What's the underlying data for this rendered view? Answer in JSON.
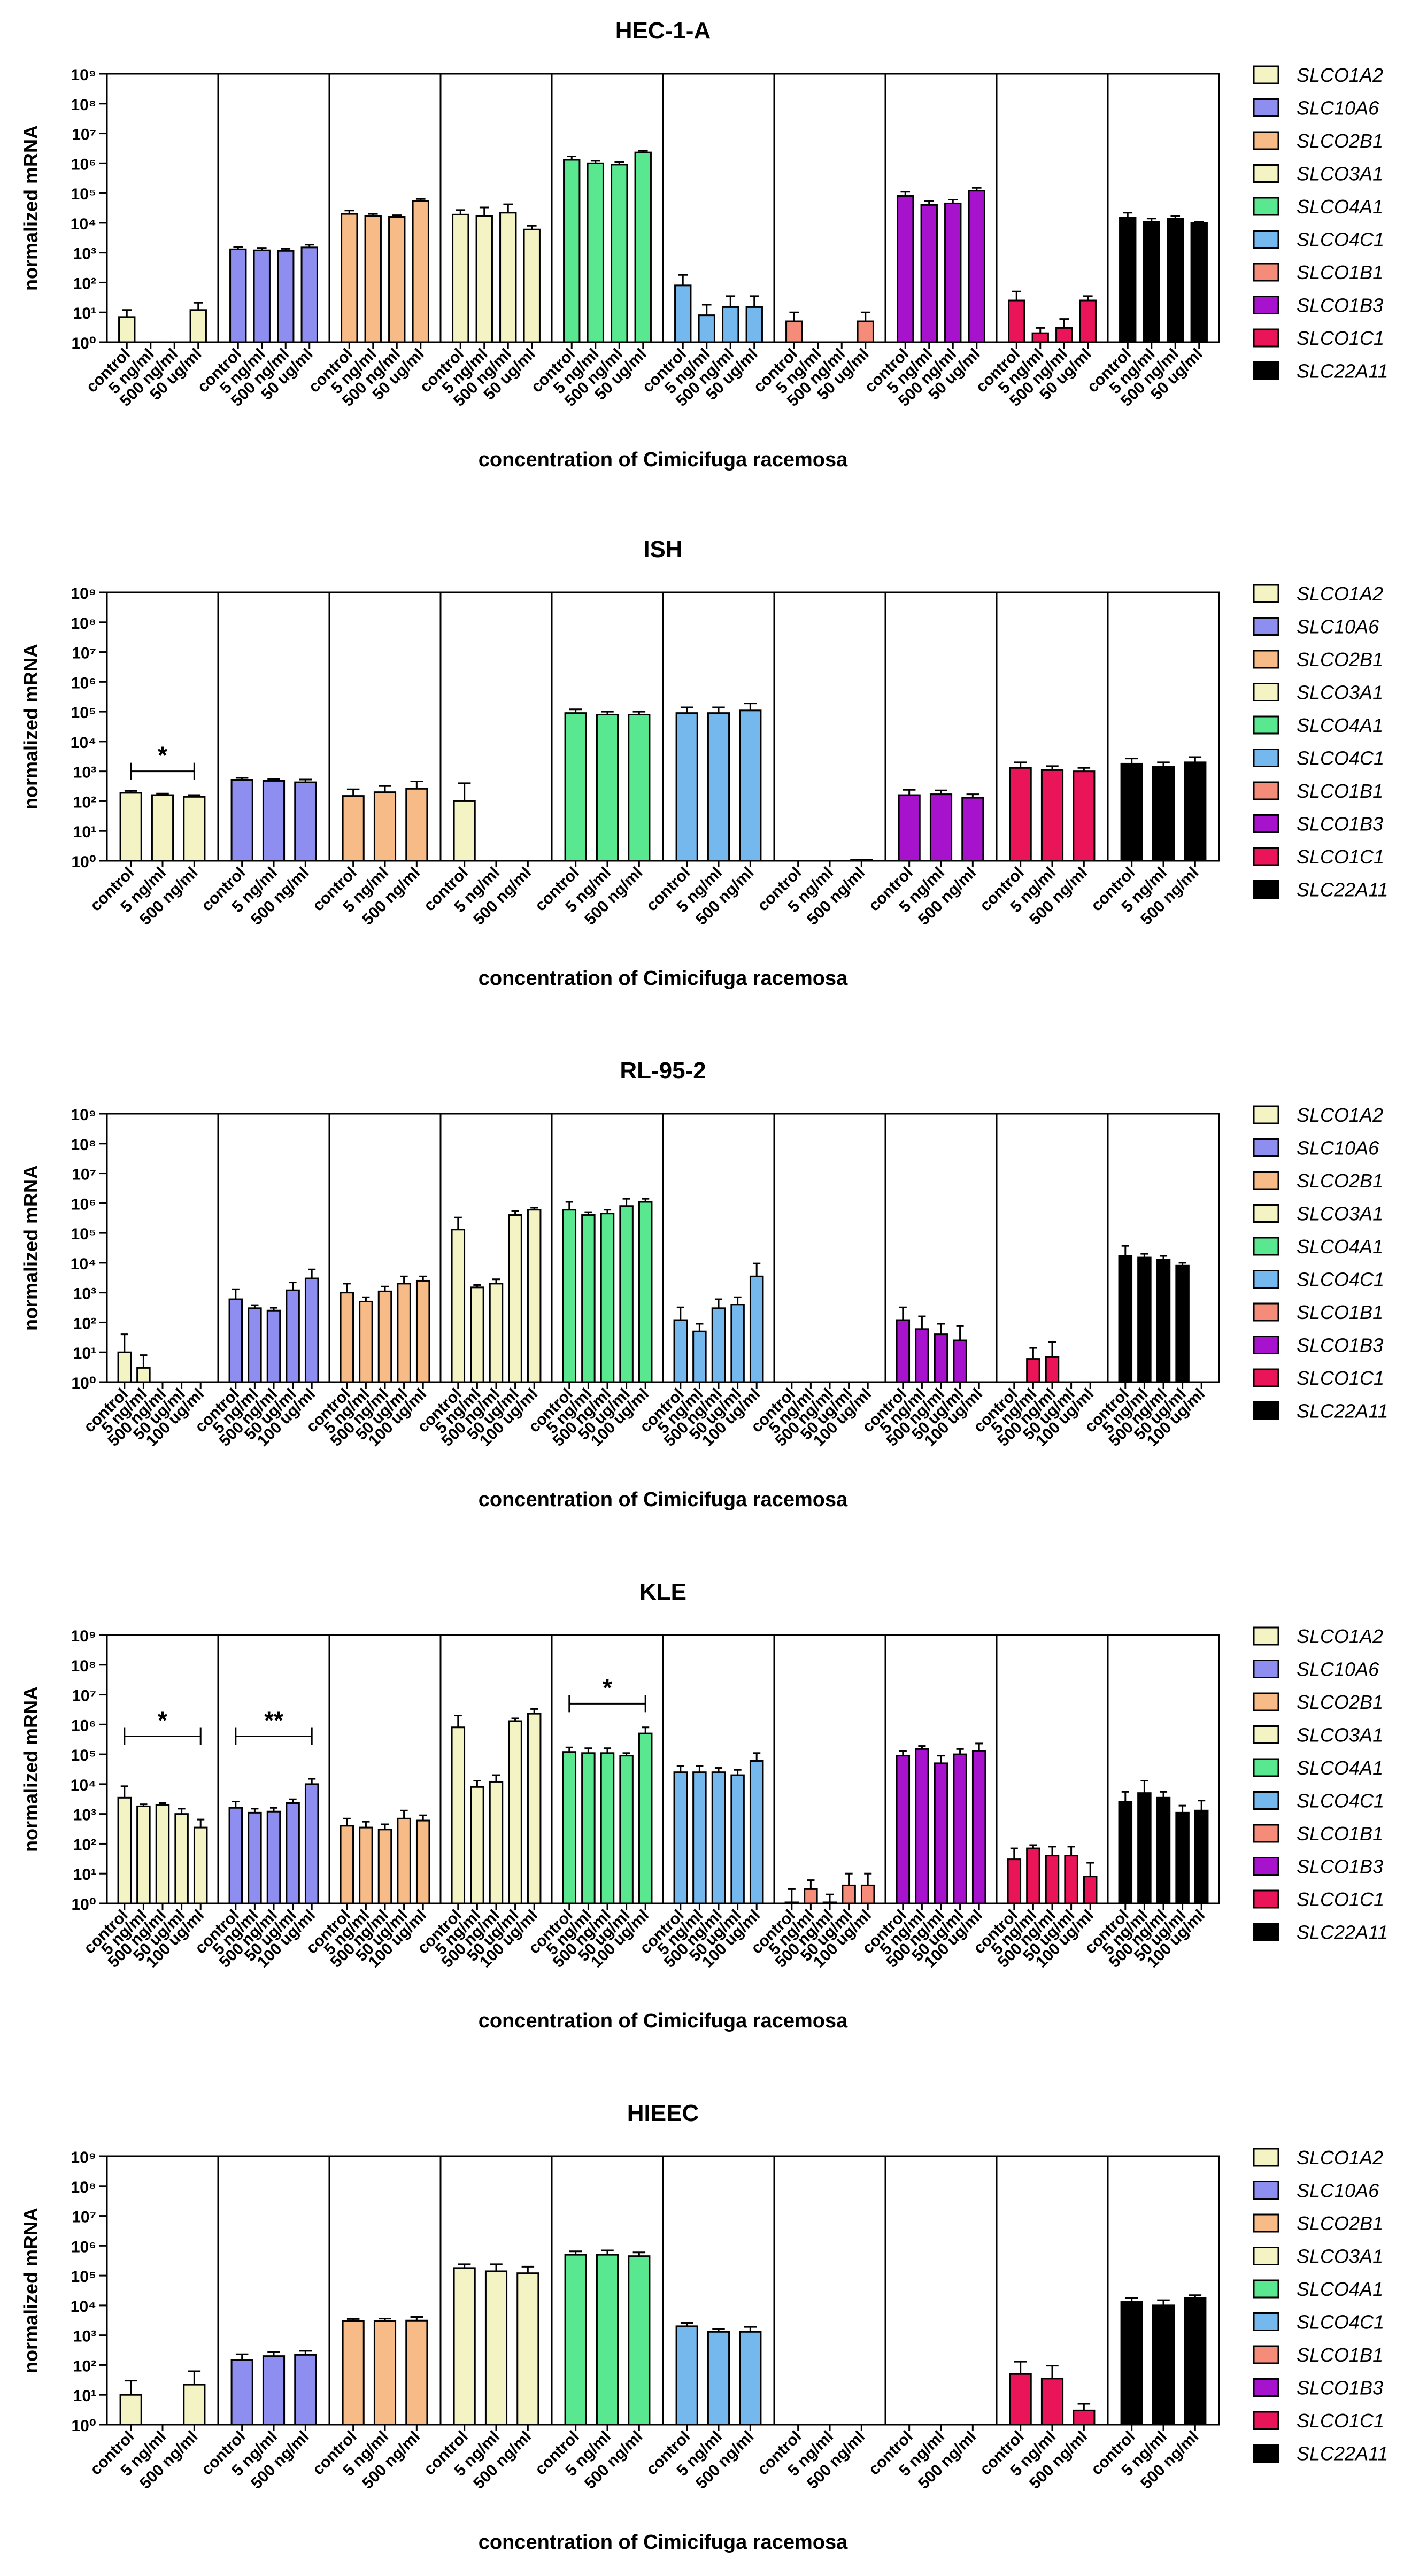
{
  "figure": {
    "panel_order": [
      "HEC-1-A",
      "ISH",
      "RL-95-2",
      "KLE",
      "HIEEC"
    ]
  },
  "chart_data": [
    {
      "type": "bar",
      "title": "HEC-1-A",
      "xlabel": "concentration of Cimicifuga racemosa",
      "ylabel": "normalized mRNA",
      "yscale": "log",
      "ylim": [
        1,
        1000000000
      ],
      "yticks": [
        "10⁰",
        "10¹",
        "10²",
        "10³",
        "10⁴",
        "10⁵",
        "10⁶",
        "10⁷",
        "10⁸",
        "10⁹"
      ],
      "categories": [
        "control",
        "5 ng/ml",
        "500 ng/ml",
        "50 ug/ml"
      ],
      "legend": [
        "SLCO1A2",
        "SLC10A6",
        "SLCO2B1",
        "SLCO3A1",
        "SLCO4A1",
        "SLCO4C1",
        "SLCO1B1",
        "SLCO1B3",
        "SLCO1C1",
        "SLC22A11"
      ],
      "series": [
        {
          "name": "SLCO1A2",
          "color": "#f3f3c3",
          "values": [
            7,
            null,
            null,
            12
          ],
          "err": [
            5,
            0,
            0,
            9
          ]
        },
        {
          "name": "SLC10A6",
          "color": "#8e8ef0",
          "values": [
            1300,
            1200,
            1150,
            1500
          ],
          "err": [
            250,
            250,
            200,
            350
          ]
        },
        {
          "name": "SLCO2B1",
          "color": "#f6bb86",
          "values": [
            20000,
            17000,
            16000,
            55000
          ],
          "err": [
            6000,
            3000,
            2000,
            8000
          ]
        },
        {
          "name": "SLCO3A1",
          "color": "#f3f3c3",
          "values": [
            19000,
            17000,
            22000,
            6000
          ],
          "err": [
            8000,
            16000,
            20000,
            2000
          ]
        },
        {
          "name": "SLCO4A1",
          "color": "#59e890",
          "values": [
            1300000,
            1000000,
            900000,
            2300000
          ],
          "err": [
            400000,
            200000,
            200000,
            300000
          ]
        },
        {
          "name": "SLCO4C1",
          "color": "#74b8ee",
          "values": [
            80,
            8,
            15,
            15
          ],
          "err": [
            100,
            10,
            20,
            20
          ]
        },
        {
          "name": "SLCO1B1",
          "color": "#f58b79",
          "values": [
            5,
            null,
            null,
            5
          ],
          "err": [
            5,
            0,
            0,
            5
          ]
        },
        {
          "name": "SLCO1B3",
          "color": "#a712cc",
          "values": [
            80000,
            40000,
            45000,
            120000
          ],
          "err": [
            30000,
            15000,
            15000,
            30000
          ]
        },
        {
          "name": "SLCO1C1",
          "color": "#ea1559",
          "values": [
            25,
            2,
            3,
            25
          ],
          "err": [
            25,
            1,
            3,
            10
          ]
        },
        {
          "name": "SLC22A11",
          "color": "#000000",
          "values": [
            15000,
            11000,
            14000,
            10000
          ],
          "err": [
            7000,
            3000,
            3000,
            1000
          ]
        }
      ],
      "annotations": []
    },
    {
      "type": "bar",
      "title": "ISH",
      "xlabel": "concentration of Cimicifuga racemosa",
      "ylabel": "normalized mRNA",
      "yscale": "log",
      "ylim": [
        1,
        1000000000
      ],
      "yticks": [
        "10⁰",
        "10¹",
        "10²",
        "10³",
        "10⁴",
        "10⁵",
        "10⁶",
        "10⁷",
        "10⁸",
        "10⁹"
      ],
      "categories": [
        "control",
        "5 ng/ml",
        "500 ng/ml"
      ],
      "legend": [
        "SLCO1A2",
        "SLC10A6",
        "SLCO2B1",
        "SLCO3A1",
        "SLCO4A1",
        "SLCO4C1",
        "SLCO1B1",
        "SLCO1B3",
        "SLCO1C1",
        "SLC22A11"
      ],
      "series": [
        {
          "name": "SLCO1A2",
          "color": "#f3f3c3",
          "values": [
            190,
            160,
            140
          ],
          "err": [
            30,
            20,
            20
          ]
        },
        {
          "name": "SLC10A6",
          "color": "#8e8ef0",
          "values": [
            520,
            480,
            430
          ],
          "err": [
            80,
            80,
            100
          ]
        },
        {
          "name": "SLCO2B1",
          "color": "#f6bb86",
          "values": [
            150,
            200,
            260
          ],
          "err": [
            100,
            120,
            200
          ]
        },
        {
          "name": "SLCO3A1",
          "color": "#f3f3c3",
          "values": [
            100,
            null,
            null
          ],
          "err": [
            300,
            0,
            0
          ]
        },
        {
          "name": "SLCO4A1",
          "color": "#59e890",
          "values": [
            90000,
            80000,
            80000
          ],
          "err": [
            30000,
            20000,
            20000
          ]
        },
        {
          "name": "SLCO4C1",
          "color": "#74b8ee",
          "values": [
            90000,
            90000,
            110000
          ],
          "err": [
            50000,
            50000,
            80000
          ]
        },
        {
          "name": "SLCO1B1",
          "color": "#f58b79",
          "values": [
            null,
            null,
            1
          ],
          "err": [
            0,
            0,
            0
          ]
        },
        {
          "name": "SLCO1B3",
          "color": "#a712cc",
          "values": [
            160,
            170,
            130
          ],
          "err": [
            80,
            60,
            40
          ]
        },
        {
          "name": "SLCO1C1",
          "color": "#ea1559",
          "values": [
            1300,
            1100,
            1000
          ],
          "err": [
            700,
            400,
            300
          ]
        },
        {
          "name": "SLC22A11",
          "color": "#000000",
          "values": [
            1800,
            1400,
            2000
          ],
          "err": [
            900,
            600,
            1000
          ]
        }
      ],
      "annotations": [
        {
          "label": "*",
          "series": "SLCO1A2",
          "from": 0,
          "to": 2,
          "value": 1000
        }
      ]
    },
    {
      "type": "bar",
      "title": "RL-95-2",
      "xlabel": "concentration of Cimicifuga racemosa",
      "ylabel": "normalized mRNA",
      "yscale": "log",
      "ylim": [
        1,
        1000000000
      ],
      "yticks": [
        "10⁰",
        "10¹",
        "10²",
        "10³",
        "10⁴",
        "10⁵",
        "10⁶",
        "10⁷",
        "10⁸",
        "10⁹"
      ],
      "categories": [
        "control",
        "5 ng/ml",
        "500 ng/ml",
        "50 ug/ml",
        "100 ug/ml"
      ],
      "legend": [
        "SLCO1A2",
        "SLC10A6",
        "SLCO2B1",
        "SLCO3A1",
        "SLCO4A1",
        "SLCO4C1",
        "SLCO1B1",
        "SLCO1B3",
        "SLCO1C1",
        "SLC22A11"
      ],
      "series": [
        {
          "name": "SLCO1A2",
          "color": "#f3f3c3",
          "values": [
            10,
            3,
            null,
            null,
            null
          ],
          "err": [
            30,
            5,
            0,
            0,
            0
          ]
        },
        {
          "name": "SLC10A6",
          "color": "#8e8ef0",
          "values": [
            600,
            300,
            250,
            1200,
            3000
          ],
          "err": [
            700,
            80,
            60,
            1000,
            3000
          ]
        },
        {
          "name": "SLCO2B1",
          "color": "#f6bb86",
          "values": [
            1000,
            500,
            1100,
            2000,
            2500
          ],
          "err": [
            1000,
            200,
            500,
            1500,
            1000
          ]
        },
        {
          "name": "SLCO3A1",
          "color": "#f3f3c3",
          "values": [
            130000,
            1500,
            2000,
            400000,
            600000
          ],
          "err": [
            200000,
            300,
            800,
            150000,
            100000
          ]
        },
        {
          "name": "SLCO4A1",
          "color": "#59e890",
          "values": [
            600000,
            400000,
            450000,
            800000,
            1100000
          ],
          "err": [
            500000,
            100000,
            150000,
            600000,
            300000
          ]
        },
        {
          "name": "SLCO4C1",
          "color": "#74b8ee",
          "values": [
            120,
            50,
            300,
            400,
            3500
          ],
          "err": [
            200,
            40,
            300,
            300,
            6000
          ]
        },
        {
          "name": "SLCO1B1",
          "color": "#f58b79",
          "values": [
            null,
            null,
            null,
            null,
            null
          ],
          "err": [
            0,
            0,
            0,
            0,
            0
          ]
        },
        {
          "name": "SLCO1B3",
          "color": "#a712cc",
          "values": [
            120,
            60,
            40,
            25,
            null
          ],
          "err": [
            200,
            100,
            50,
            50,
            0
          ]
        },
        {
          "name": "SLCO1C1",
          "color": "#ea1559",
          "values": [
            null,
            6,
            7,
            null,
            null
          ],
          "err": [
            0,
            8,
            15,
            0,
            0
          ]
        },
        {
          "name": "SLC22A11",
          "color": "#000000",
          "values": [
            17000,
            15000,
            13000,
            8000,
            null
          ],
          "err": [
            20000,
            5000,
            4000,
            2000,
            0
          ]
        }
      ],
      "annotations": []
    },
    {
      "type": "bar",
      "title": "KLE",
      "xlabel": "concentration of Cimicifuga racemosa",
      "ylabel": "normalized mRNA",
      "yscale": "log",
      "ylim": [
        1,
        1000000000
      ],
      "yticks": [
        "10⁰",
        "10¹",
        "10²",
        "10³",
        "10⁴",
        "10⁵",
        "10⁶",
        "10⁷",
        "10⁸",
        "10⁹"
      ],
      "categories": [
        "control",
        "5 ng/ml",
        "500 ng/ml",
        "50 ug/ml",
        "100 ug/ml"
      ],
      "legend": [
        "SLCO1A2",
        "SLC10A6",
        "SLCO2B1",
        "SLCO3A1",
        "SLCO4A1",
        "SLCO4C1",
        "SLCO1B1",
        "SLCO1B3",
        "SLCO1C1",
        "SLC22A11"
      ],
      "series": [
        {
          "name": "SLCO1A2",
          "color": "#f3f3c3",
          "values": [
            3500,
            1800,
            2000,
            1000,
            350
          ],
          "err": [
            5000,
            300,
            300,
            500,
            300
          ]
        },
        {
          "name": "SLC10A6",
          "color": "#8e8ef0",
          "values": [
            1600,
            1100,
            1200,
            2300,
            10000
          ],
          "err": [
            1000,
            400,
            400,
            800,
            5000
          ]
        },
        {
          "name": "SLCO2B1",
          "color": "#f6bb86",
          "values": [
            400,
            350,
            300,
            700,
            600
          ],
          "err": [
            300,
            200,
            150,
            600,
            300
          ]
        },
        {
          "name": "SLCO3A1",
          "color": "#f3f3c3",
          "values": [
            800000,
            8000,
            12000,
            1300000,
            2300000
          ],
          "err": [
            1200000,
            5000,
            8000,
            300000,
            1000000
          ]
        },
        {
          "name": "SLCO4A1",
          "color": "#59e890",
          "values": [
            120000,
            110000,
            110000,
            90000,
            500000
          ],
          "err": [
            50000,
            50000,
            50000,
            20000,
            300000
          ]
        },
        {
          "name": "SLCO4C1",
          "color": "#74b8ee",
          "values": [
            25000,
            25000,
            25000,
            20000,
            60000
          ],
          "err": [
            15000,
            15000,
            10000,
            10000,
            50000
          ]
        },
        {
          "name": "SLCO1B1",
          "color": "#f58b79",
          "values": [
            1,
            3,
            1,
            4,
            4
          ],
          "err": [
            2,
            3,
            1,
            6,
            6
          ]
        },
        {
          "name": "SLCO1B3",
          "color": "#a712cc",
          "values": [
            90000,
            150000,
            50000,
            100000,
            130000
          ],
          "err": [
            40000,
            40000,
            40000,
            50000,
            100000
          ]
        },
        {
          "name": "SLCO1C1",
          "color": "#ea1559",
          "values": [
            30,
            70,
            40,
            40,
            8
          ],
          "err": [
            40,
            20,
            40,
            40,
            15
          ]
        },
        {
          "name": "SLC22A11",
          "color": "#000000",
          "values": [
            2500,
            5000,
            3500,
            1100,
            1300
          ],
          "err": [
            3000,
            8000,
            2000,
            800,
            1500
          ]
        }
      ],
      "annotations": [
        {
          "label": "*",
          "series": "SLCO1A2",
          "from": 0,
          "to": 4,
          "value": 400000
        },
        {
          "label": "**",
          "series": "SLC10A6",
          "from": 0,
          "to": 4,
          "value": 400000
        },
        {
          "label": "*",
          "series": "SLCO4A1",
          "from": 0,
          "to": 4,
          "value": 5000000
        }
      ]
    },
    {
      "type": "bar",
      "title": "HIEEC",
      "xlabel": "concentration of Cimicifuga racemosa",
      "ylabel": "normalized mRNA",
      "yscale": "log",
      "ylim": [
        1,
        1000000000
      ],
      "yticks": [
        "10⁰",
        "10¹",
        "10²",
        "10³",
        "10⁴",
        "10⁵",
        "10⁶",
        "10⁷",
        "10⁸",
        "10⁹"
      ],
      "categories": [
        "control",
        "5 ng/ml",
        "500 ng/ml"
      ],
      "legend": [
        "SLCO1A2",
        "SLC10A6",
        "SLCO2B1",
        "SLCO3A1",
        "SLCO4A1",
        "SLCO4C1",
        "SLCO1B1",
        "SLCO1B3",
        "SLCO1C1",
        "SLC22A11"
      ],
      "series": [
        {
          "name": "SLCO1A2",
          "color": "#f3f3c3",
          "values": [
            10,
            null,
            22
          ],
          "err": [
            20,
            0,
            40
          ]
        },
        {
          "name": "SLC10A6",
          "color": "#8e8ef0",
          "values": [
            150,
            200,
            220
          ],
          "err": [
            80,
            80,
            80
          ]
        },
        {
          "name": "SLCO2B1",
          "color": "#f6bb86",
          "values": [
            3000,
            3000,
            3100
          ],
          "err": [
            500,
            600,
            1000
          ]
        },
        {
          "name": "SLCO3A1",
          "color": "#f3f3c3",
          "values": [
            180000,
            140000,
            120000
          ],
          "err": [
            60000,
            100000,
            80000
          ]
        },
        {
          "name": "SLCO4A1",
          "color": "#59e890",
          "values": [
            500000,
            500000,
            450000
          ],
          "err": [
            150000,
            200000,
            150000
          ]
        },
        {
          "name": "SLCO4C1",
          "color": "#74b8ee",
          "values": [
            2000,
            1300,
            1300
          ],
          "err": [
            600,
            300,
            600
          ]
        },
        {
          "name": "SLCO1B1",
          "color": "#f58b79",
          "values": [
            null,
            null,
            null
          ],
          "err": [
            0,
            0,
            0
          ]
        },
        {
          "name": "SLCO1B3",
          "color": "#a712cc",
          "values": [
            null,
            null,
            null
          ],
          "err": [
            0,
            0,
            0
          ]
        },
        {
          "name": "SLCO1C1",
          "color": "#ea1559",
          "values": [
            50,
            35,
            3
          ],
          "err": [
            80,
            60,
            2
          ]
        },
        {
          "name": "SLC22A11",
          "color": "#000000",
          "values": [
            13000,
            10000,
            18000
          ],
          "err": [
            5000,
            5000,
            4000
          ]
        }
      ],
      "annotations": []
    }
  ]
}
